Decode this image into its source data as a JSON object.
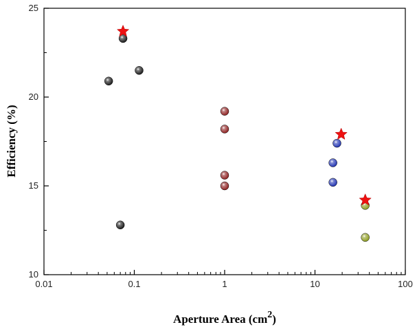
{
  "chart_data": {
    "type": "scatter",
    "title": "",
    "xlabel": "Aperture Area (cm",
    "xlabel_superscript": "2",
    "xlabel_close": ")",
    "ylabel": "Efficiency (%)",
    "xscale": "log",
    "xlim": [
      0.01,
      100
    ],
    "ylim": [
      10,
      25
    ],
    "xticks": [
      0.01,
      0.1,
      1,
      10,
      100
    ],
    "xtick_labels": [
      "0.01",
      "0.1",
      "1",
      "10",
      "100"
    ],
    "yticks": [
      10,
      15,
      20,
      25
    ],
    "ytick_labels": [
      "10",
      "15",
      "20",
      "25"
    ],
    "grid": false,
    "legend": "none",
    "series": [
      {
        "marker": "sphere",
        "color": "#111111",
        "points": [
          {
            "x": 0.052,
            "y": 20.9
          },
          {
            "x": 0.075,
            "y": 23.3
          },
          {
            "x": 0.113,
            "y": 21.5
          },
          {
            "x": 0.07,
            "y": 12.8
          }
        ]
      },
      {
        "marker": "sphere",
        "color": "#8b1a1a",
        "points": [
          {
            "x": 1.0,
            "y": 19.2
          },
          {
            "x": 1.0,
            "y": 18.2
          },
          {
            "x": 1.0,
            "y": 15.6
          },
          {
            "x": 1.0,
            "y": 15.0
          }
        ]
      },
      {
        "marker": "sphere",
        "color": "#1a2db0",
        "points": [
          {
            "x": 17.5,
            "y": 17.4
          },
          {
            "x": 15.8,
            "y": 16.3
          },
          {
            "x": 15.8,
            "y": 15.2
          }
        ]
      },
      {
        "marker": "sphere",
        "color": "#8a9a1a",
        "points": [
          {
            "x": 36.0,
            "y": 13.9
          },
          {
            "x": 36.0,
            "y": 12.1
          }
        ]
      },
      {
        "marker": "star",
        "color": "#ee1111",
        "points": [
          {
            "x": 0.075,
            "y": 23.7
          },
          {
            "x": 19.5,
            "y": 17.9
          },
          {
            "x": 36.0,
            "y": 14.2
          }
        ]
      }
    ]
  }
}
